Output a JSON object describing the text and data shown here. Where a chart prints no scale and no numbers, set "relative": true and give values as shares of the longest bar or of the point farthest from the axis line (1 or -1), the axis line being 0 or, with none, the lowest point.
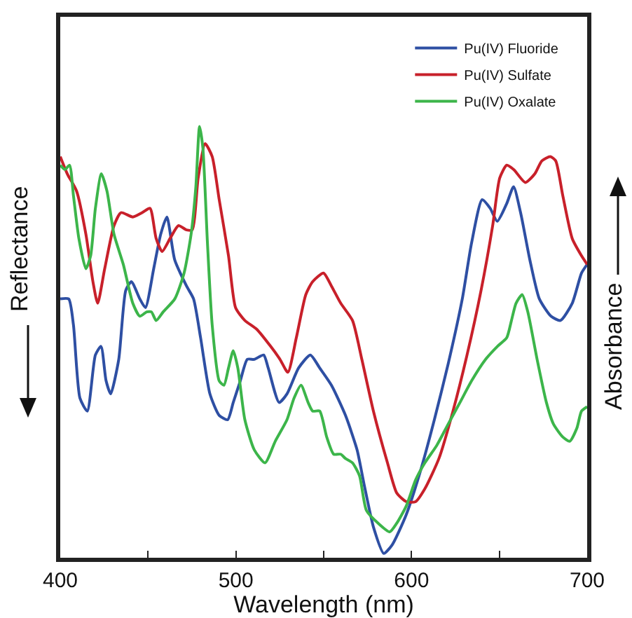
{
  "chart_data": {
    "type": "line",
    "relative": true,
    "xlabel": "Wavelength (nm)",
    "ylabel": "Reflectance",
    "y2label": "Absorbance",
    "xlim": [
      400,
      700
    ],
    "xticks": [
      400,
      {
        "value": 450,
        "label": null
      },
      500,
      {
        "value": 550,
        "label": null
      },
      600,
      {
        "value": 650,
        "label": null
      },
      700
    ],
    "grid": false,
    "legend": "top right",
    "marker": "none",
    "line_style": "solid",
    "series": [
      {
        "name": "Pu(IV) Fluoride",
        "color": "#2e4fa3",
        "x": [
          400,
          404.8,
          407.5,
          411.2,
          415.4,
          420,
          423.2,
          426.1,
          428.7,
          433.3,
          437.3,
          440.5,
          445.3,
          448.5,
          453.2,
          457.2,
          460.7,
          465.2,
          471.9,
          475.9,
          479.9,
          485.2,
          490.5,
          495.3,
          498.5,
          502.5,
          506.5,
          510.5,
          515.8,
          518.4,
          524.6,
          529.1,
          535.7,
          542.4,
          547.7,
          554.4,
          562.4,
          569,
          573,
          578.4,
          584.2,
          589,
          597,
          605,
          613,
          620.9,
          628.9,
          634.2,
          640.2,
          644.8,
          648.8,
          654.1,
          658.1,
          662.1,
          667.4,
          672.8,
          679.4,
          684.8,
          691.5,
          696.8,
          700
        ],
        "values": [
          0.6,
          0.6,
          0.54,
          0.37,
          0.34,
          0.47,
          0.49,
          0.41,
          0.38,
          0.46,
          0.62,
          0.64,
          0.6,
          0.58,
          0.67,
          0.75,
          0.79,
          0.69,
          0.63,
          0.6,
          0.51,
          0.38,
          0.33,
          0.32,
          0.36,
          0.41,
          0.46,
          0.46,
          0.47,
          0.44,
          0.36,
          0.38,
          0.44,
          0.47,
          0.44,
          0.4,
          0.33,
          0.25,
          0.17,
          0.07,
          0.01,
          0.03,
          0.1,
          0.2,
          0.32,
          0.45,
          0.6,
          0.73,
          0.83,
          0.81,
          0.78,
          0.82,
          0.86,
          0.8,
          0.69,
          0.6,
          0.56,
          0.55,
          0.59,
          0.66,
          0.68
        ]
      },
      {
        "name": "Pu(IV) Sulfate",
        "color": "#c8202a",
        "x": [
          400,
          404,
          409.3,
          414.6,
          418.6,
          421.3,
          425.3,
          430.6,
          434.6,
          441.3,
          446.6,
          451.1,
          454.6,
          458,
          462.5,
          467.3,
          471.9,
          475.1,
          478.5,
          482.5,
          486.5,
          490.5,
          495.8,
          499.8,
          505.1,
          511.8,
          519.8,
          525.1,
          529.6,
          534.4,
          539.8,
          543.7,
          549.9,
          554.4,
          559.7,
          566.4,
          571.7,
          578.3,
          586.3,
          591.6,
          597,
          602.3,
          607.6,
          615.6,
          623.6,
          631.6,
          639.6,
          646.2,
          650.2,
          654.2,
          658.2,
          664.8,
          670.2,
          674.2,
          679,
          682.1,
          686.1,
          691.5,
          696.8,
          700
        ],
        "values": [
          0.93,
          0.89,
          0.85,
          0.75,
          0.64,
          0.59,
          0.67,
          0.77,
          0.8,
          0.79,
          0.8,
          0.81,
          0.74,
          0.71,
          0.74,
          0.77,
          0.76,
          0.76,
          0.88,
          0.96,
          0.93,
          0.83,
          0.7,
          0.58,
          0.55,
          0.53,
          0.49,
          0.46,
          0.43,
          0.51,
          0.61,
          0.64,
          0.66,
          0.63,
          0.59,
          0.55,
          0.46,
          0.34,
          0.22,
          0.15,
          0.13,
          0.13,
          0.16,
          0.23,
          0.34,
          0.47,
          0.62,
          0.77,
          0.88,
          0.91,
          0.9,
          0.87,
          0.89,
          0.92,
          0.93,
          0.92,
          0.84,
          0.74,
          0.7,
          0.68
        ]
      },
      {
        "name": "Pu(IV) Oxalate",
        "color": "#3cb54a",
        "x": [
          400,
          402.7,
          405.3,
          407.5,
          410.6,
          414.6,
          417.3,
          420,
          423.4,
          426.6,
          430.6,
          435.9,
          441.3,
          445.3,
          449.2,
          451.9,
          454.6,
          458.6,
          465.2,
          470.5,
          474.5,
          477.2,
          479.3,
          481.2,
          483.8,
          486.5,
          490.5,
          493.2,
          495.8,
          498.5,
          501.1,
          505.1,
          510.5,
          516.6,
          522.4,
          529.1,
          533.1,
          537.1,
          541.1,
          543.7,
          547.7,
          551.7,
          555.7,
          559.7,
          562.4,
          566.4,
          570.4,
          574.3,
          581,
          587.6,
          591.6,
          597,
          602.3,
          607.6,
          614.3,
          620.9,
          627.6,
          634.2,
          642.2,
          648.9,
          654.2,
          656.9,
          659.5,
          663,
          666.2,
          671.5,
          676.8,
          680.8,
          686.1,
          690.1,
          694.1,
          696.8,
          700
        ],
        "values": [
          0.91,
          0.9,
          0.91,
          0.84,
          0.74,
          0.67,
          0.7,
          0.81,
          0.89,
          0.85,
          0.75,
          0.68,
          0.59,
          0.56,
          0.57,
          0.57,
          0.55,
          0.57,
          0.6,
          0.66,
          0.75,
          0.86,
          1,
          0.95,
          0.73,
          0.54,
          0.41,
          0.4,
          0.44,
          0.48,
          0.44,
          0.32,
          0.25,
          0.22,
          0.27,
          0.32,
          0.37,
          0.4,
          0.36,
          0.34,
          0.34,
          0.28,
          0.24,
          0.24,
          0.23,
          0.22,
          0.19,
          0.11,
          0.08,
          0.06,
          0.08,
          0.12,
          0.18,
          0.22,
          0.26,
          0.31,
          0.36,
          0.41,
          0.46,
          0.49,
          0.51,
          0.55,
          0.59,
          0.61,
          0.57,
          0.46,
          0.36,
          0.31,
          0.28,
          0.27,
          0.3,
          0.34,
          0.35
        ]
      }
    ]
  }
}
